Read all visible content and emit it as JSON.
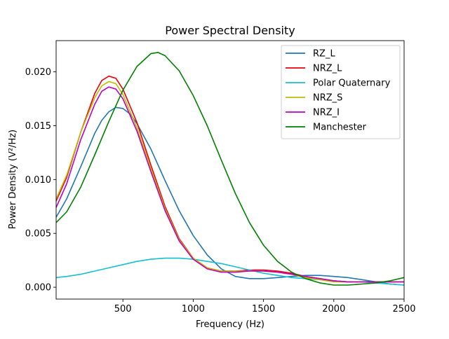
{
  "chart_data": {
    "type": "line",
    "title": "Power Spectral Density",
    "xlabel": "Frequency (Hz)",
    "ylabel": "Power Density (V²/Hz)",
    "xlim": [
      25,
      2500
    ],
    "ylim": [
      -0.0011,
      0.0229
    ],
    "xticks": [
      500,
      1000,
      1500,
      2000,
      2500
    ],
    "xtick_labels": [
      "500",
      "1000",
      "1500",
      "2000",
      "2500"
    ],
    "yticks": [
      0.0,
      0.005,
      0.01,
      0.015,
      0.02
    ],
    "ytick_labels": [
      "0.000",
      "0.005",
      "0.010",
      "0.015",
      "0.020"
    ],
    "grid": false,
    "legend_position": "top-right",
    "series": [
      {
        "name": "RZ_L",
        "color": "#1f77b4",
        "points": [
          [
            25,
            0.0065
          ],
          [
            100,
            0.0082
          ],
          [
            200,
            0.0112
          ],
          [
            300,
            0.0143
          ],
          [
            350,
            0.0155
          ],
          [
            400,
            0.0163
          ],
          [
            450,
            0.0167
          ],
          [
            500,
            0.0166
          ],
          [
            550,
            0.0161
          ],
          [
            600,
            0.0152
          ],
          [
            700,
            0.0128
          ],
          [
            800,
            0.0099
          ],
          [
            900,
            0.0071
          ],
          [
            1000,
            0.0048
          ],
          [
            1100,
            0.003
          ],
          [
            1200,
            0.0017
          ],
          [
            1300,
            0.001
          ],
          [
            1400,
            0.0008
          ],
          [
            1500,
            0.0008
          ],
          [
            1600,
            0.0009
          ],
          [
            1700,
            0.001
          ],
          [
            1800,
            0.0011
          ],
          [
            1900,
            0.0011
          ],
          [
            2000,
            0.001
          ],
          [
            2100,
            0.0009
          ],
          [
            2200,
            0.0007
          ],
          [
            2300,
            0.0005
          ],
          [
            2400,
            0.0003
          ],
          [
            2500,
            0.0002
          ]
        ]
      },
      {
        "name": "NRZ_L",
        "color": "#e8000b",
        "points": [
          [
            25,
            0.008
          ],
          [
            100,
            0.0102
          ],
          [
            200,
            0.0144
          ],
          [
            300,
            0.018
          ],
          [
            350,
            0.0192
          ],
          [
            400,
            0.0196
          ],
          [
            450,
            0.0194
          ],
          [
            500,
            0.0184
          ],
          [
            600,
            0.0153
          ],
          [
            700,
            0.0113
          ],
          [
            800,
            0.0075
          ],
          [
            900,
            0.0045
          ],
          [
            1000,
            0.0027
          ],
          [
            1100,
            0.0018
          ],
          [
            1200,
            0.0015
          ],
          [
            1300,
            0.0015
          ],
          [
            1400,
            0.0016
          ],
          [
            1500,
            0.0016
          ],
          [
            1600,
            0.0015
          ],
          [
            1700,
            0.0013
          ],
          [
            1800,
            0.001
          ],
          [
            1900,
            0.0008
          ],
          [
            2000,
            0.0006
          ],
          [
            2100,
            0.0005
          ],
          [
            2200,
            0.0005
          ],
          [
            2300,
            0.0005
          ],
          [
            2400,
            0.0005
          ],
          [
            2500,
            0.0005
          ]
        ]
      },
      {
        "name": "Polar Quaternary",
        "color": "#17becf",
        "points": [
          [
            25,
            0.0009
          ],
          [
            100,
            0.001
          ],
          [
            200,
            0.0012
          ],
          [
            300,
            0.0015
          ],
          [
            400,
            0.0018
          ],
          [
            500,
            0.0021
          ],
          [
            600,
            0.0024
          ],
          [
            700,
            0.0026
          ],
          [
            800,
            0.0027
          ],
          [
            900,
            0.0027
          ],
          [
            1000,
            0.0026
          ],
          [
            1100,
            0.0024
          ],
          [
            1200,
            0.0022
          ],
          [
            1300,
            0.0019
          ],
          [
            1400,
            0.0016
          ],
          [
            1500,
            0.0013
          ],
          [
            1600,
            0.0011
          ],
          [
            1700,
            0.0009
          ],
          [
            1800,
            0.0008
          ],
          [
            1900,
            0.0007
          ],
          [
            2000,
            0.0006
          ],
          [
            2100,
            0.0005
          ],
          [
            2200,
            0.0005
          ],
          [
            2300,
            0.0004
          ],
          [
            2400,
            0.0003
          ],
          [
            2500,
            0.0002
          ]
        ]
      },
      {
        "name": "NRZ_S",
        "color": "#bcbd00",
        "points": [
          [
            25,
            0.0082
          ],
          [
            100,
            0.0104
          ],
          [
            200,
            0.0144
          ],
          [
            300,
            0.0176
          ],
          [
            350,
            0.0187
          ],
          [
            400,
            0.0191
          ],
          [
            450,
            0.0189
          ],
          [
            500,
            0.0179
          ],
          [
            600,
            0.0148
          ],
          [
            700,
            0.011
          ],
          [
            800,
            0.0073
          ],
          [
            900,
            0.0044
          ],
          [
            1000,
            0.0027
          ],
          [
            1100,
            0.0018
          ],
          [
            1200,
            0.0015
          ],
          [
            1300,
            0.0015
          ],
          [
            1400,
            0.0015
          ],
          [
            1500,
            0.0015
          ],
          [
            1600,
            0.0014
          ],
          [
            1700,
            0.0012
          ],
          [
            1800,
            0.0009
          ],
          [
            1900,
            0.0007
          ],
          [
            2000,
            0.0005
          ],
          [
            2100,
            0.0005
          ],
          [
            2200,
            0.0005
          ],
          [
            2300,
            0.0005
          ],
          [
            2400,
            0.0005
          ],
          [
            2500,
            0.0005
          ]
        ]
      },
      {
        "name": "NRZ_I",
        "color": "#bf00bf",
        "points": [
          [
            25,
            0.0074
          ],
          [
            100,
            0.0096
          ],
          [
            200,
            0.0137
          ],
          [
            300,
            0.017
          ],
          [
            350,
            0.0182
          ],
          [
            400,
            0.0186
          ],
          [
            450,
            0.0184
          ],
          [
            500,
            0.0175
          ],
          [
            600,
            0.0145
          ],
          [
            700,
            0.0107
          ],
          [
            800,
            0.0071
          ],
          [
            900,
            0.0043
          ],
          [
            1000,
            0.0026
          ],
          [
            1100,
            0.0017
          ],
          [
            1200,
            0.0014
          ],
          [
            1300,
            0.0014
          ],
          [
            1400,
            0.0015
          ],
          [
            1500,
            0.0015
          ],
          [
            1600,
            0.0014
          ],
          [
            1700,
            0.0012
          ],
          [
            1800,
            0.001
          ],
          [
            1900,
            0.0008
          ],
          [
            2000,
            0.0006
          ],
          [
            2100,
            0.0005
          ],
          [
            2200,
            0.0005
          ],
          [
            2300,
            0.0005
          ],
          [
            2400,
            0.0005
          ],
          [
            2500,
            0.0005
          ]
        ]
      },
      {
        "name": "Manchester",
        "color": "#008000",
        "points": [
          [
            25,
            0.006
          ],
          [
            100,
            0.007
          ],
          [
            200,
            0.0093
          ],
          [
            300,
            0.0123
          ],
          [
            400,
            0.0154
          ],
          [
            500,
            0.0183
          ],
          [
            600,
            0.0205
          ],
          [
            700,
            0.0217
          ],
          [
            750,
            0.0218
          ],
          [
            800,
            0.0215
          ],
          [
            900,
            0.0201
          ],
          [
            1000,
            0.0178
          ],
          [
            1100,
            0.015
          ],
          [
            1200,
            0.0118
          ],
          [
            1300,
            0.0087
          ],
          [
            1400,
            0.006
          ],
          [
            1500,
            0.0039
          ],
          [
            1600,
            0.0024
          ],
          [
            1700,
            0.0014
          ],
          [
            1800,
            0.0008
          ],
          [
            1900,
            0.0004
          ],
          [
            2000,
            0.0002
          ],
          [
            2100,
            0.0002
          ],
          [
            2200,
            0.0003
          ],
          [
            2300,
            0.0004
          ],
          [
            2400,
            0.0006
          ],
          [
            2500,
            0.0009
          ]
        ]
      }
    ]
  }
}
